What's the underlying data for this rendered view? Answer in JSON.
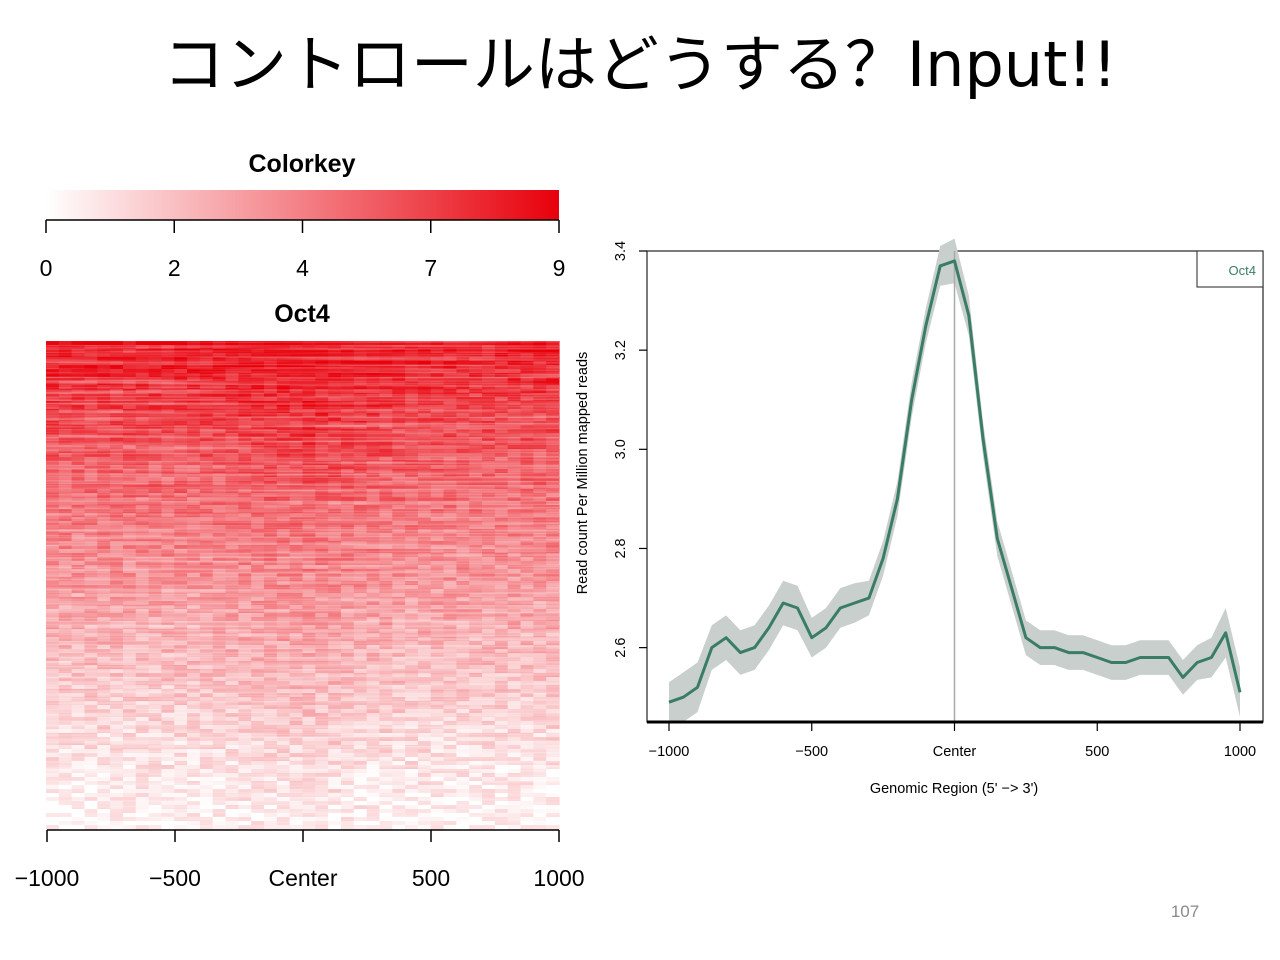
{
  "slide": {
    "title": "コントロールはどうする？Input!!",
    "page_number": "107"
  },
  "chart_data": [
    {
      "type": "heatmap",
      "colorkey": {
        "title": "Colorkey",
        "ticks": [
          "0",
          "2",
          "4",
          "7",
          "9"
        ],
        "range": [
          0,
          9
        ],
        "low_color": "#ffffff",
        "high_color": "#e8000b"
      },
      "title": "Oct4",
      "x_tick_labels": [
        "−1000",
        "−500",
        "Center",
        "500",
        "1000"
      ],
      "x_range": [
        -1000,
        1000
      ],
      "description_values": "rows sorted by signal; strong signal (≈6–9) at top rows, fading to ≈0–1 at bottom rows"
    },
    {
      "type": "line",
      "legend": [
        "Oct4"
      ],
      "legend_position": "top-right",
      "xlabel": "Genomic Region (5' −> 3')",
      "ylabel": "Read count Per Million mapped reads",
      "xlim": [
        -1000,
        1000
      ],
      "ylim": [
        2.45,
        3.4
      ],
      "x_ticks": [
        -1000,
        -500,
        0,
        500,
        1000
      ],
      "x_tick_labels": [
        "−1000",
        "−500",
        "Center",
        "500",
        "1000"
      ],
      "y_ticks": [
        2.6,
        2.8,
        3.0,
        3.2,
        3.4
      ],
      "y_tick_labels": [
        "2.6",
        "2.8",
        "3.0",
        "3.2",
        "3.4"
      ],
      "center_line": true,
      "colors": {
        "line": "#3a7d66",
        "band": "#c9cfcc",
        "center_line": "#aaaaaa"
      },
      "series": [
        {
          "name": "Oct4",
          "x": [
            -1000,
            -950,
            -900,
            -850,
            -800,
            -750,
            -700,
            -650,
            -600,
            -550,
            -500,
            -450,
            -400,
            -350,
            -300,
            -250,
            -200,
            -150,
            -100,
            -50,
            0,
            50,
            100,
            150,
            200,
            250,
            300,
            350,
            400,
            450,
            500,
            550,
            600,
            650,
            700,
            750,
            800,
            850,
            900,
            950,
            1000
          ],
          "y": [
            2.49,
            2.5,
            2.52,
            2.6,
            2.62,
            2.59,
            2.6,
            2.64,
            2.69,
            2.68,
            2.62,
            2.64,
            2.68,
            2.69,
            2.7,
            2.78,
            2.9,
            3.1,
            3.25,
            3.37,
            3.38,
            3.27,
            3.02,
            2.82,
            2.72,
            2.62,
            2.6,
            2.6,
            2.59,
            2.59,
            2.58,
            2.57,
            2.57,
            2.58,
            2.58,
            2.58,
            2.54,
            2.57,
            2.58,
            2.63,
            2.51
          ],
          "band_half_width": [
            0.04,
            0.05,
            0.05,
            0.045,
            0.045,
            0.045,
            0.045,
            0.045,
            0.045,
            0.045,
            0.04,
            0.04,
            0.04,
            0.04,
            0.035,
            0.035,
            0.035,
            0.035,
            0.035,
            0.04,
            0.045,
            0.04,
            0.035,
            0.035,
            0.035,
            0.035,
            0.035,
            0.035,
            0.035,
            0.035,
            0.035,
            0.035,
            0.035,
            0.035,
            0.035,
            0.035,
            0.035,
            0.035,
            0.04,
            0.05,
            0.05
          ]
        }
      ]
    }
  ]
}
